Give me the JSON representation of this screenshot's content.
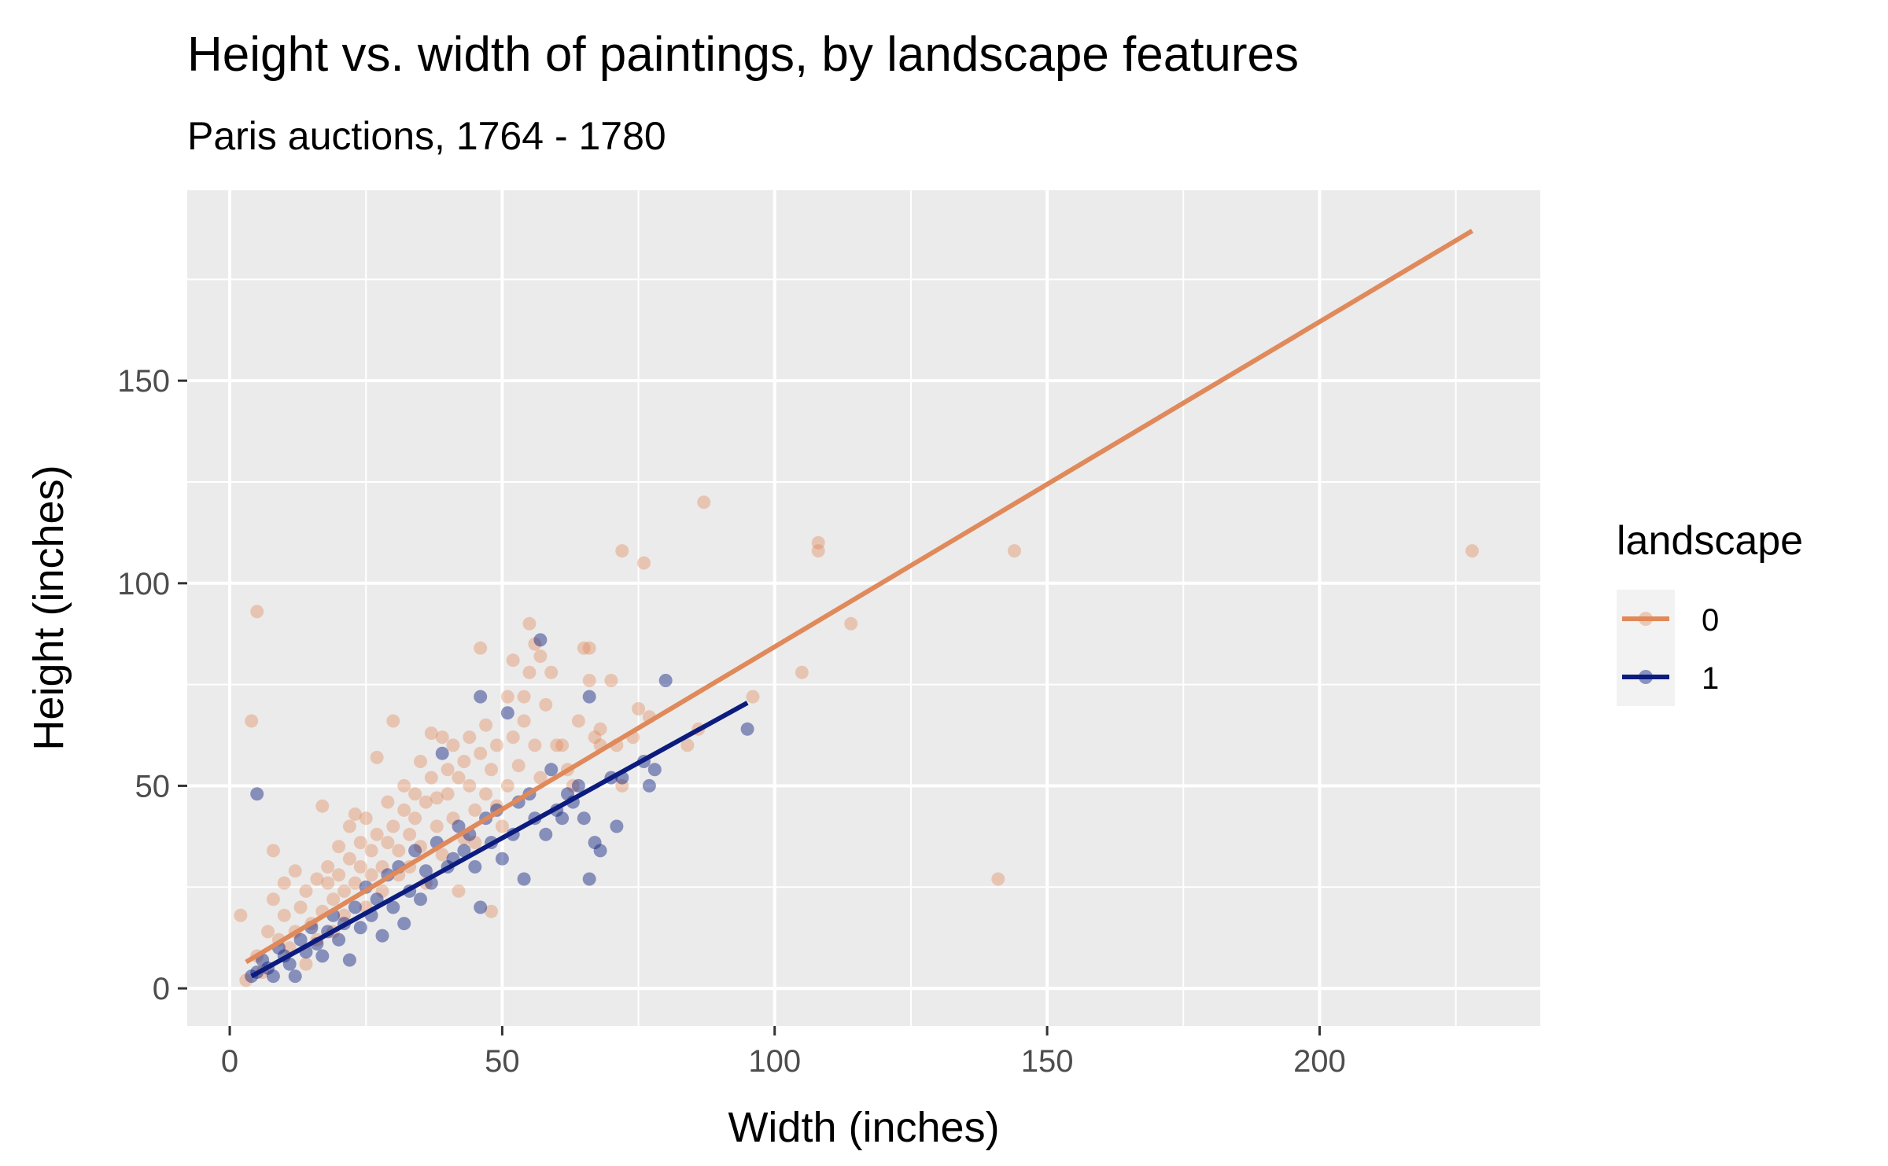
{
  "chart_data": {
    "type": "scatter",
    "title": "Height vs. width of paintings, by landscape features",
    "subtitle": "Paris auctions, 1764 - 1780",
    "xlabel": "Width (inches)",
    "ylabel": "Height (inches)",
    "xlim": [
      -7.8,
      240.5
    ],
    "ylim": [
      -9.3,
      197.0
    ],
    "x_ticks": [
      0,
      50,
      100,
      150,
      200
    ],
    "x_tick_labels": [
      "0",
      "50",
      "100",
      "150",
      "200"
    ],
    "y_ticks": [
      0,
      50,
      100,
      150
    ],
    "y_tick_labels": [
      "0",
      "50",
      "100",
      "150"
    ],
    "grid": true,
    "legend": {
      "title": "landscape",
      "position": "right"
    },
    "series": [
      {
        "name": "0",
        "color": "#E0895A",
        "points": [
          [
            2,
            18
          ],
          [
            3,
            2
          ],
          [
            4,
            66
          ],
          [
            5,
            8
          ],
          [
            5,
            93
          ],
          [
            6,
            4
          ],
          [
            7,
            14
          ],
          [
            8,
            34
          ],
          [
            8,
            22
          ],
          [
            9,
            12
          ],
          [
            10,
            26
          ],
          [
            10,
            18
          ],
          [
            11,
            10
          ],
          [
            12,
            29
          ],
          [
            12,
            14
          ],
          [
            13,
            20
          ],
          [
            14,
            24
          ],
          [
            14,
            6
          ],
          [
            15,
            16
          ],
          [
            16,
            27
          ],
          [
            16,
            12
          ],
          [
            17,
            45
          ],
          [
            17,
            19
          ],
          [
            18,
            26
          ],
          [
            18,
            30
          ],
          [
            19,
            22
          ],
          [
            19,
            14
          ],
          [
            20,
            35
          ],
          [
            20,
            28
          ],
          [
            21,
            24
          ],
          [
            21,
            18
          ],
          [
            22,
            32
          ],
          [
            22,
            40
          ],
          [
            23,
            43
          ],
          [
            23,
            26
          ],
          [
            24,
            30
          ],
          [
            24,
            36
          ],
          [
            25,
            20
          ],
          [
            25,
            42
          ],
          [
            26,
            34
          ],
          [
            26,
            28
          ],
          [
            27,
            38
          ],
          [
            27,
            57
          ],
          [
            28,
            30
          ],
          [
            28,
            24
          ],
          [
            29,
            46
          ],
          [
            29,
            36
          ],
          [
            30,
            66
          ],
          [
            30,
            40
          ],
          [
            31,
            34
          ],
          [
            31,
            28
          ],
          [
            32,
            44
          ],
          [
            32,
            50
          ],
          [
            33,
            30
          ],
          [
            33,
            38
          ],
          [
            34,
            48
          ],
          [
            34,
            42
          ],
          [
            35,
            35
          ],
          [
            35,
            56
          ],
          [
            36,
            46
          ],
          [
            36,
            26
          ],
          [
            37,
            52
          ],
          [
            37,
            63
          ],
          [
            38,
            40
          ],
          [
            38,
            47
          ],
          [
            39,
            62
          ],
          [
            39,
            33
          ],
          [
            40,
            54
          ],
          [
            40,
            48
          ],
          [
            41,
            42
          ],
          [
            41,
            60
          ],
          [
            42,
            52
          ],
          [
            42,
            24
          ],
          [
            43,
            56
          ],
          [
            43,
            37
          ],
          [
            44,
            50
          ],
          [
            44,
            62
          ],
          [
            45,
            44
          ],
          [
            45,
            36
          ],
          [
            46,
            84
          ],
          [
            46,
            58
          ],
          [
            47,
            48
          ],
          [
            47,
            65
          ],
          [
            48,
            54
          ],
          [
            48,
            19
          ],
          [
            49,
            45
          ],
          [
            49,
            60
          ],
          [
            50,
            40
          ],
          [
            51,
            72
          ],
          [
            51,
            50
          ],
          [
            52,
            81
          ],
          [
            52,
            62
          ],
          [
            53,
            55
          ],
          [
            54,
            72
          ],
          [
            54,
            66
          ],
          [
            55,
            90
          ],
          [
            55,
            78
          ],
          [
            56,
            85
          ],
          [
            56,
            60
          ],
          [
            57,
            82
          ],
          [
            57,
            52
          ],
          [
            58,
            70
          ],
          [
            59,
            78
          ],
          [
            60,
            60
          ],
          [
            61,
            60
          ],
          [
            62,
            54
          ],
          [
            63,
            50
          ],
          [
            64,
            66
          ],
          [
            65,
            84
          ],
          [
            66,
            84
          ],
          [
            66,
            76
          ],
          [
            67,
            62
          ],
          [
            68,
            60
          ],
          [
            68,
            64
          ],
          [
            70,
            76
          ],
          [
            71,
            60
          ],
          [
            72,
            108
          ],
          [
            72,
            50
          ],
          [
            74,
            62
          ],
          [
            75,
            69
          ],
          [
            76,
            105
          ],
          [
            77,
            67
          ],
          [
            84,
            60
          ],
          [
            86,
            64
          ],
          [
            87,
            120
          ],
          [
            96,
            72
          ],
          [
            105,
            78
          ],
          [
            108,
            110
          ],
          [
            108,
            108
          ],
          [
            114,
            90
          ],
          [
            141,
            27
          ],
          [
            144,
            108
          ],
          [
            228,
            108
          ]
        ],
        "fit": {
          "x": [
            3,
            228
          ],
          "y": [
            6.5,
            187
          ]
        }
      },
      {
        "name": "1",
        "color": "#0C1C7E",
        "points": [
          [
            4,
            3
          ],
          [
            5,
            4
          ],
          [
            5,
            48
          ],
          [
            6,
            7
          ],
          [
            7,
            5
          ],
          [
            8,
            3
          ],
          [
            9,
            10
          ],
          [
            10,
            8
          ],
          [
            11,
            6
          ],
          [
            12,
            3
          ],
          [
            13,
            12
          ],
          [
            14,
            9
          ],
          [
            15,
            15
          ],
          [
            16,
            11
          ],
          [
            17,
            8
          ],
          [
            18,
            14
          ],
          [
            19,
            18
          ],
          [
            20,
            12
          ],
          [
            21,
            16
          ],
          [
            22,
            7
          ],
          [
            23,
            20
          ],
          [
            24,
            15
          ],
          [
            25,
            25
          ],
          [
            26,
            18
          ],
          [
            27,
            22
          ],
          [
            28,
            13
          ],
          [
            29,
            28
          ],
          [
            30,
            20
          ],
          [
            31,
            30
          ],
          [
            32,
            16
          ],
          [
            33,
            24
          ],
          [
            34,
            34
          ],
          [
            35,
            22
          ],
          [
            36,
            29
          ],
          [
            37,
            26
          ],
          [
            38,
            36
          ],
          [
            39,
            58
          ],
          [
            40,
            30
          ],
          [
            41,
            32
          ],
          [
            42,
            40
          ],
          [
            43,
            34
          ],
          [
            44,
            38
          ],
          [
            45,
            30
          ],
          [
            46,
            72
          ],
          [
            46,
            20
          ],
          [
            47,
            42
          ],
          [
            48,
            36
          ],
          [
            49,
            44
          ],
          [
            50,
            32
          ],
          [
            51,
            68
          ],
          [
            52,
            38
          ],
          [
            53,
            46
          ],
          [
            54,
            27
          ],
          [
            55,
            48
          ],
          [
            56,
            42
          ],
          [
            57,
            86
          ],
          [
            58,
            38
          ],
          [
            59,
            54
          ],
          [
            60,
            44
          ],
          [
            61,
            42
          ],
          [
            62,
            48
          ],
          [
            63,
            46
          ],
          [
            64,
            50
          ],
          [
            65,
            42
          ],
          [
            66,
            72
          ],
          [
            66,
            27
          ],
          [
            67,
            36
          ],
          [
            68,
            34
          ],
          [
            70,
            52
          ],
          [
            71,
            40
          ],
          [
            72,
            52
          ],
          [
            76,
            56
          ],
          [
            77,
            50
          ],
          [
            78,
            54
          ],
          [
            80,
            76
          ],
          [
            95,
            64
          ]
        ],
        "fit": {
          "x": [
            4,
            95
          ],
          "y": [
            3,
            70.5
          ]
        }
      }
    ]
  }
}
